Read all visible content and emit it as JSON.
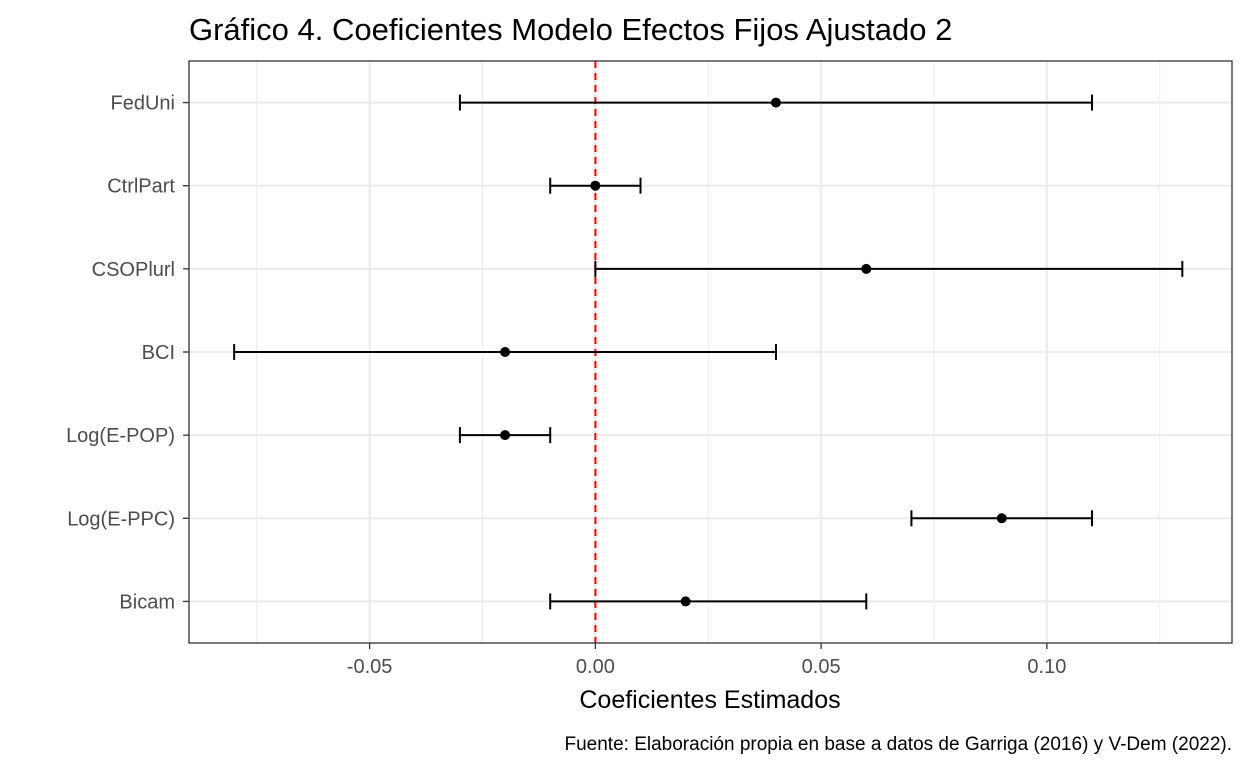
{
  "chart_data": {
    "type": "errorbar",
    "title": "Gráfico 4. Coeficientes Modelo Efectos Fijos Ajustado 2",
    "xlabel": "Coeficientes Estimados",
    "ylabel": "",
    "caption": "Fuente: Elaboración propia en base a datos de Garriga (2016) y V-Dem (2022).",
    "xlim": [
      -0.09,
      0.141
    ],
    "x_ticks": [
      -0.05,
      0.0,
      0.05,
      0.1
    ],
    "x_tick_labels": [
      "-0.05",
      "0.00",
      "0.05",
      "0.10"
    ],
    "reference_line": {
      "x": 0,
      "color": "#ff0000",
      "style": "dashed"
    },
    "grid": true,
    "categories": [
      "FedUni",
      "CtrlPart",
      "CSOPlurl",
      "BCI",
      "Log(E-POP)",
      "Log(E-PPC)",
      "Bicam"
    ],
    "series": [
      {
        "estimate": [
          0.04,
          0.0,
          0.06,
          -0.02,
          -0.02,
          0.09,
          0.02
        ],
        "lower": [
          -0.03,
          -0.01,
          0.0,
          -0.08,
          -0.03,
          0.07,
          -0.01
        ],
        "upper": [
          0.11,
          0.01,
          0.13,
          0.04,
          -0.01,
          0.11,
          0.06
        ]
      }
    ]
  }
}
